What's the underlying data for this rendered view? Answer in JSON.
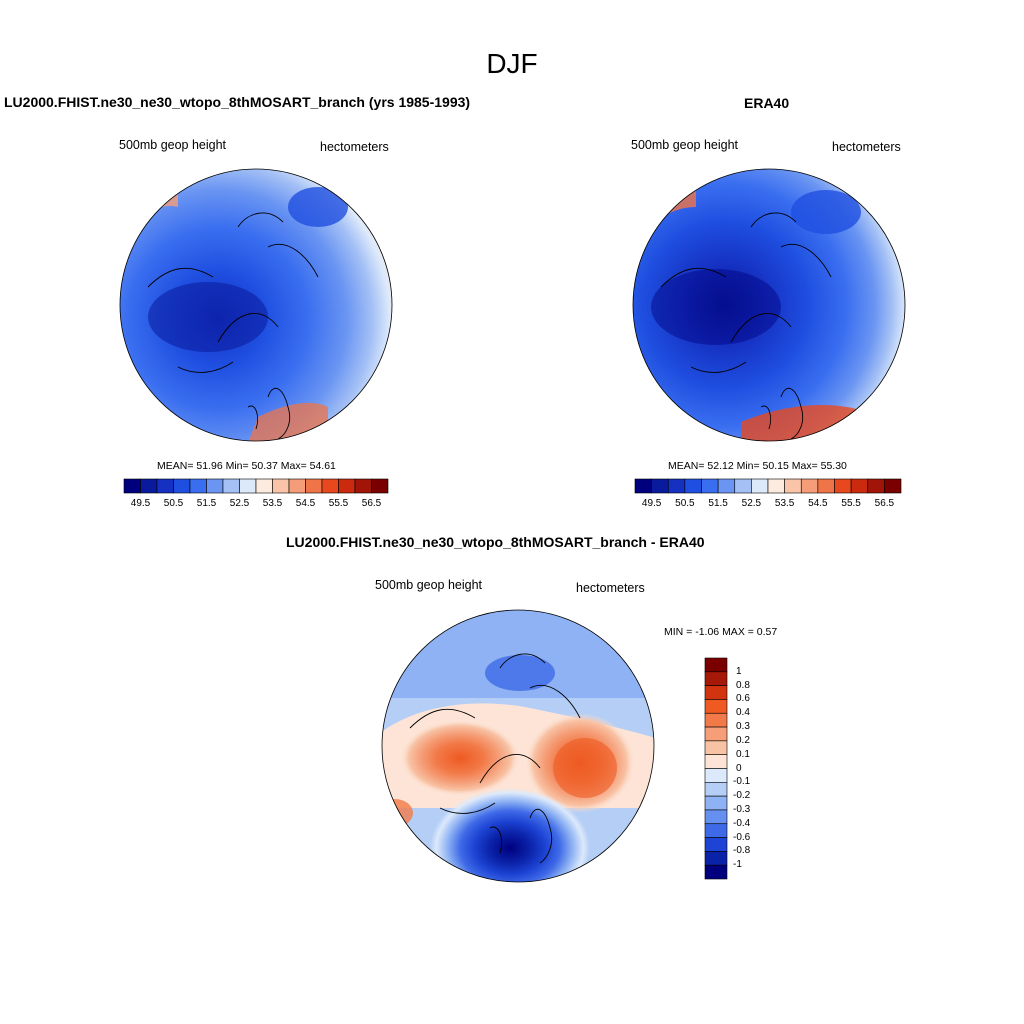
{
  "figure": {
    "title": "DJF"
  },
  "panels": {
    "model": {
      "title": "LU2000.FHIST.ne30_ne30_wtopo_8thMOSART_branch (yrs 1985-1993)",
      "left_label": "500mb geop height",
      "right_label": "hectometers",
      "stats": "MEAN=  51.96  Min=  50.37  Max=  54.61"
    },
    "obs": {
      "title": "ERA40",
      "left_label": "500mb geop height",
      "right_label": "hectometers",
      "stats": "MEAN=  52.12  Min=  50.15  Max=  55.30"
    },
    "diff": {
      "title": "LU2000.FHIST.ne30_ne30_wtopo_8thMOSART_branch - ERA40",
      "left_label": "500mb geop height",
      "right_label": "hectometers",
      "stats": "MIN =  -1.06 MAX =   0.57"
    }
  },
  "colorbars": {
    "absolute": {
      "colors": [
        "#00007f",
        "#0a1a9c",
        "#1531c2",
        "#1f4fe0",
        "#3a6ef0",
        "#6a95f2",
        "#a4c0f5",
        "#dce9fb",
        "#fdebe0",
        "#f9c4a8",
        "#f59c78",
        "#ef7448",
        "#e8481e",
        "#cc2a0e",
        "#a01508",
        "#7a0000"
      ],
      "tick_labels": [
        "49.5",
        "50.5",
        "51.5",
        "52.5",
        "53.5",
        "54.5",
        "55.5",
        "56.5"
      ]
    },
    "difference": {
      "colors": [
        "#7a0000",
        "#a61808",
        "#d23410",
        "#ee5a22",
        "#f27a48",
        "#f59e78",
        "#f8c2a4",
        "#fde4d6",
        "#dce9fb",
        "#b4cef6",
        "#8eb2f3",
        "#6690ef",
        "#3f6ae7",
        "#1d44d4",
        "#0a22a8",
        "#00007f"
      ],
      "tick_labels": [
        "1",
        "0.8",
        "0.6",
        "0.4",
        "0.3",
        "0.2",
        "0.1",
        "0",
        "-0.1",
        "-0.2",
        "-0.3",
        "-0.4",
        "-0.6",
        "-0.8",
        "-1"
      ]
    }
  },
  "chart_data": [
    {
      "type": "heatmap",
      "title": "LU2000.FHIST.ne30_ne30_wtopo_8thMOSART_branch (yrs 1985-1993)",
      "variable": "500mb geop height",
      "units": "hectometers",
      "projection": "polar stereographic (Northern Hemisphere)",
      "mean": 51.96,
      "min": 50.37,
      "max": 54.61,
      "contour_levels": [
        49.5,
        50.0,
        50.5,
        51.0,
        51.5,
        52.0,
        52.5,
        53.0,
        53.5,
        54.0,
        54.5,
        55.0,
        55.5,
        56.0,
        56.5
      ]
    },
    {
      "type": "heatmap",
      "title": "ERA40",
      "variable": "500mb geop height",
      "units": "hectometers",
      "projection": "polar stereographic (Northern Hemisphere)",
      "mean": 52.12,
      "min": 50.15,
      "max": 55.3,
      "contour_levels": [
        49.5,
        50.0,
        50.5,
        51.0,
        51.5,
        52.0,
        52.5,
        53.0,
        53.5,
        54.0,
        54.5,
        55.0,
        55.5,
        56.0,
        56.5
      ]
    },
    {
      "type": "heatmap",
      "title": "LU2000.FHIST.ne30_ne30_wtopo_8thMOSART_branch - ERA40",
      "variable": "500mb geop height",
      "units": "hectometers",
      "projection": "polar stereographic (Northern Hemisphere)",
      "min": -1.06,
      "max": 0.57,
      "contour_levels": [
        -1,
        -0.8,
        -0.6,
        -0.4,
        -0.3,
        -0.2,
        -0.1,
        0,
        0.1,
        0.2,
        0.3,
        0.4,
        0.6,
        0.8,
        1
      ]
    }
  ]
}
